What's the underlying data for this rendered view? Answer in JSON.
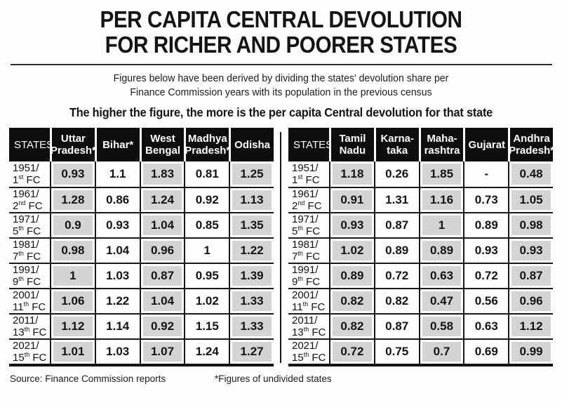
{
  "header": {
    "title": "PER CAPITA CENTRAL DEVOLUTION\nFOR RICHER AND POORER STATES",
    "subtitle": "Figures below have been derived by dividing the states' devolution share per\nFinance Commission years with its population in the previous census",
    "tagline": "The higher the figure, the more is the per capita Central devolution for that state"
  },
  "colors": {
    "header_bg": "#0e0e0e",
    "cell_gray": "#d4d4d4",
    "grid_line": "#1a1a1a"
  },
  "tables": [
    {
      "name": "poorer-states",
      "corner_label": "STATES",
      "columns": [
        "Uttar\nPradesh*",
        "Bihar*",
        "West\nBengal",
        "Madhya\nPradesh*",
        "Odisha"
      ],
      "rows": [
        {
          "year": "1951/",
          "fc_number": "1",
          "fc_ordinal": "st",
          "fc_label": "FC",
          "values": [
            "0.93",
            "1.1",
            "1.83",
            "0.81",
            "1.25"
          ]
        },
        {
          "year": "1961/",
          "fc_number": "2",
          "fc_ordinal": "nd",
          "fc_label": "FC",
          "values": [
            "1.28",
            "0.86",
            "1.24",
            "0.92",
            "1.13"
          ]
        },
        {
          "year": "1971/",
          "fc_number": "5",
          "fc_ordinal": "th",
          "fc_label": "FC",
          "values": [
            "0.9",
            "0.93",
            "1.04",
            "0.85",
            "1.35"
          ]
        },
        {
          "year": "1981/",
          "fc_number": "7",
          "fc_ordinal": "th",
          "fc_label": "FC",
          "values": [
            "0.98",
            "1.04",
            "0.96",
            "1",
            "1.22"
          ]
        },
        {
          "year": "1991/",
          "fc_number": "9",
          "fc_ordinal": "th",
          "fc_label": "FC",
          "values": [
            "1",
            "1.03",
            "0.87",
            "0.95",
            "1.39"
          ]
        },
        {
          "year": "2001/",
          "fc_number": "11",
          "fc_ordinal": "th",
          "fc_label": "FC",
          "values": [
            "1.06",
            "1.22",
            "1.04",
            "1.02",
            "1.33"
          ]
        },
        {
          "year": "2011/",
          "fc_number": "13",
          "fc_ordinal": "th",
          "fc_label": "FC",
          "values": [
            "1.12",
            "1.14",
            "0.92",
            "1.15",
            "1.33"
          ]
        },
        {
          "year": "2021/",
          "fc_number": "15",
          "fc_ordinal": "th",
          "fc_label": "FC",
          "values": [
            "1.01",
            "1.03",
            "1.07",
            "1.24",
            "1.27"
          ]
        }
      ]
    },
    {
      "name": "richer-states",
      "corner_label": "STATES",
      "columns": [
        "Tamil\nNadu",
        "Karna-\ntaka",
        "Maha-\nrashtra",
        "Gujarat",
        "Andhra\nPradesh*"
      ],
      "rows": [
        {
          "year": "1951/",
          "fc_number": "1",
          "fc_ordinal": "st",
          "fc_label": "FC",
          "values": [
            "1.18",
            "0.26",
            "1.85",
            "-",
            "0.48"
          ]
        },
        {
          "year": "1961/",
          "fc_number": "2",
          "fc_ordinal": "nd",
          "fc_label": "FC",
          "values": [
            "0.91",
            "1.31",
            "1.16",
            "0.73",
            "1.05"
          ]
        },
        {
          "year": "1971/",
          "fc_number": "5",
          "fc_ordinal": "th",
          "fc_label": "FC",
          "values": [
            "0.93",
            "0.87",
            "1",
            "0.89",
            "0.98"
          ]
        },
        {
          "year": "1981/",
          "fc_number": "7",
          "fc_ordinal": "th",
          "fc_label": "FC",
          "values": [
            "1.02",
            "0.89",
            "0.89",
            "0.93",
            "0.93"
          ]
        },
        {
          "year": "1991/",
          "fc_number": "9",
          "fc_ordinal": "th",
          "fc_label": "FC",
          "values": [
            "0.89",
            "0.72",
            "0.63",
            "0.72",
            "0.87"
          ]
        },
        {
          "year": "2001/",
          "fc_number": "11",
          "fc_ordinal": "th",
          "fc_label": "FC",
          "values": [
            "0.82",
            "0.82",
            "0.47",
            "0.56",
            "0.96"
          ]
        },
        {
          "year": "2011/",
          "fc_number": "13",
          "fc_ordinal": "th",
          "fc_label": "FC",
          "values": [
            "0.82",
            "0.87",
            "0.58",
            "0.63",
            "1.12"
          ]
        },
        {
          "year": "2021/",
          "fc_number": "15",
          "fc_ordinal": "th",
          "fc_label": "FC",
          "values": [
            "0.72",
            "0.75",
            "0.7",
            "0.69",
            "0.99"
          ]
        }
      ]
    }
  ],
  "footer": {
    "source": "Source: Finance Commission reports",
    "note": "*Figures of undivided states"
  },
  "chart_data": [
    {
      "type": "table",
      "title": "Per capita Central devolution — poorer states",
      "columns": [
        "STATES",
        "Uttar Pradesh*",
        "Bihar*",
        "West Bengal",
        "Madhya Pradesh*",
        "Odisha"
      ],
      "rows": [
        [
          "1951/1st FC",
          0.93,
          1.1,
          1.83,
          0.81,
          1.25
        ],
        [
          "1961/2nd FC",
          1.28,
          0.86,
          1.24,
          0.92,
          1.13
        ],
        [
          "1971/5th FC",
          0.9,
          0.93,
          1.04,
          0.85,
          1.35
        ],
        [
          "1981/7th FC",
          0.98,
          1.04,
          0.96,
          1,
          1.22
        ],
        [
          "1991/9th FC",
          1,
          1.03,
          0.87,
          0.95,
          1.39
        ],
        [
          "2001/11th FC",
          1.06,
          1.22,
          1.04,
          1.02,
          1.33
        ],
        [
          "2011/13th FC",
          1.12,
          1.14,
          0.92,
          1.15,
          1.33
        ],
        [
          "2021/15th FC",
          1.01,
          1.03,
          1.07,
          1.24,
          1.27
        ]
      ]
    },
    {
      "type": "table",
      "title": "Per capita Central devolution — richer states",
      "columns": [
        "STATES",
        "Tamil Nadu",
        "Karnataka",
        "Maharashtra",
        "Gujarat",
        "Andhra Pradesh*"
      ],
      "rows": [
        [
          "1951/1st FC",
          1.18,
          0.26,
          1.85,
          "-",
          0.48
        ],
        [
          "1961/2nd FC",
          0.91,
          1.31,
          1.16,
          0.73,
          1.05
        ],
        [
          "1971/5th FC",
          0.93,
          0.87,
          1,
          0.89,
          0.98
        ],
        [
          "1981/7th FC",
          1.02,
          0.89,
          0.89,
          0.93,
          0.93
        ],
        [
          "1991/9th FC",
          0.89,
          0.72,
          0.63,
          0.72,
          0.87
        ],
        [
          "2001/11th FC",
          0.82,
          0.82,
          0.47,
          0.56,
          0.96
        ],
        [
          "2011/13th FC",
          0.82,
          0.87,
          0.58,
          0.63,
          1.12
        ],
        [
          "2021/15th FC",
          0.72,
          0.75,
          0.7,
          0.69,
          0.99
        ]
      ]
    }
  ]
}
